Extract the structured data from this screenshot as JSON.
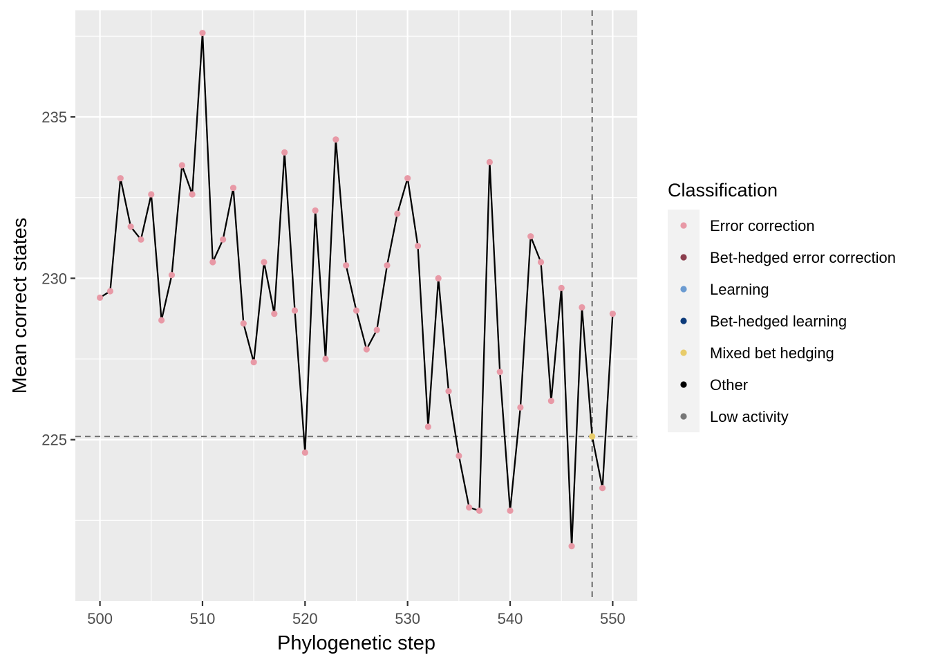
{
  "chart_data": {
    "type": "line",
    "xlabel": "Phylogenetic step",
    "ylabel": "Mean correct states",
    "xlim": [
      497.6,
      552.4
    ],
    "ylim": [
      220.0,
      238.3
    ],
    "x_ticks": [
      500,
      510,
      520,
      530,
      540,
      550
    ],
    "y_ticks": [
      225,
      230,
      235
    ],
    "grid": true,
    "reference_lines": {
      "hline_y": 225.1,
      "vline_x": 548
    },
    "legend": {
      "title": "Classification",
      "placement": "right",
      "entries": [
        {
          "label": "Error correction",
          "color": "#e899a6"
        },
        {
          "label": "Bet-hedged error correction",
          "color": "#8b3e4e"
        },
        {
          "label": "Learning",
          "color": "#6b9bd1"
        },
        {
          "label": "Bet-hedged learning",
          "color": "#0d3b7a"
        },
        {
          "label": "Mixed bet hedging",
          "color": "#e8cc6a"
        },
        {
          "label": "Other",
          "color": "#000000"
        },
        {
          "label": "Low activity",
          "color": "#777777"
        }
      ]
    },
    "series": [
      {
        "x": [
          500,
          501,
          502,
          503,
          504,
          505,
          506,
          507,
          508,
          509,
          510,
          511,
          512,
          513,
          514,
          515,
          516,
          517,
          518,
          519,
          520,
          521,
          522,
          523,
          524,
          525,
          526,
          527,
          528,
          529,
          530,
          531,
          532,
          533,
          534,
          535,
          536,
          537,
          538,
          539,
          540,
          541,
          542,
          543,
          544,
          545,
          546,
          547,
          548,
          549,
          550
        ],
        "y": [
          229.4,
          229.6,
          233.1,
          231.6,
          231.2,
          232.6,
          228.7,
          230.1,
          233.5,
          232.6,
          237.6,
          230.5,
          231.2,
          232.8,
          228.6,
          227.4,
          230.5,
          228.9,
          233.9,
          229.0,
          224.6,
          232.1,
          227.5,
          234.3,
          230.4,
          229.0,
          227.8,
          228.4,
          230.4,
          232.0,
          233.1,
          231.0,
          225.4,
          230.0,
          226.5,
          224.5,
          222.9,
          222.8,
          233.6,
          227.1,
          222.8,
          226.0,
          231.3,
          230.5,
          226.2,
          229.7,
          221.7,
          229.1,
          225.1,
          223.5,
          228.9
        ],
        "classes": [
          "Error correction",
          "Error correction",
          "Error correction",
          "Error correction",
          "Error correction",
          "Error correction",
          "Error correction",
          "Error correction",
          "Error correction",
          "Error correction",
          "Error correction",
          "Error correction",
          "Error correction",
          "Error correction",
          "Error correction",
          "Error correction",
          "Error correction",
          "Error correction",
          "Error correction",
          "Error correction",
          "Error correction",
          "Error correction",
          "Error correction",
          "Error correction",
          "Error correction",
          "Error correction",
          "Error correction",
          "Error correction",
          "Error correction",
          "Error correction",
          "Error correction",
          "Error correction",
          "Error correction",
          "Error correction",
          "Error correction",
          "Error correction",
          "Error correction",
          "Error correction",
          "Error correction",
          "Error correction",
          "Error correction",
          "Error correction",
          "Error correction",
          "Error correction",
          "Error correction",
          "Error correction",
          "Error correction",
          "Error correction",
          "Mixed bet hedging",
          "Error correction",
          "Error correction"
        ]
      }
    ]
  }
}
